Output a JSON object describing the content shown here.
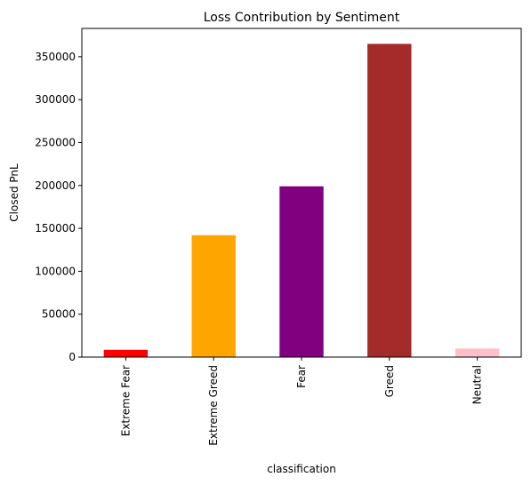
{
  "chart_data": {
    "type": "bar",
    "title": "Loss Contribution by Sentiment",
    "xlabel": "classification",
    "ylabel": "Closed PnL",
    "categories": [
      "Extreme Fear",
      "Extreme Greed",
      "Fear",
      "Greed",
      "Neutral"
    ],
    "values": [
      8500,
      142000,
      199000,
      365000,
      10000
    ],
    "colors": [
      "#ff0000",
      "#ffa500",
      "#800080",
      "#a52a2a",
      "#ffc0cb"
    ],
    "ylim": [
      0,
      383000
    ],
    "yticks": [
      0,
      50000,
      100000,
      150000,
      200000,
      250000,
      300000,
      350000
    ],
    "ytick_labels": [
      "0",
      "50000",
      "100000",
      "150000",
      "200000",
      "250000",
      "300000",
      "350000"
    ],
    "grid": false,
    "legend": "none"
  }
}
